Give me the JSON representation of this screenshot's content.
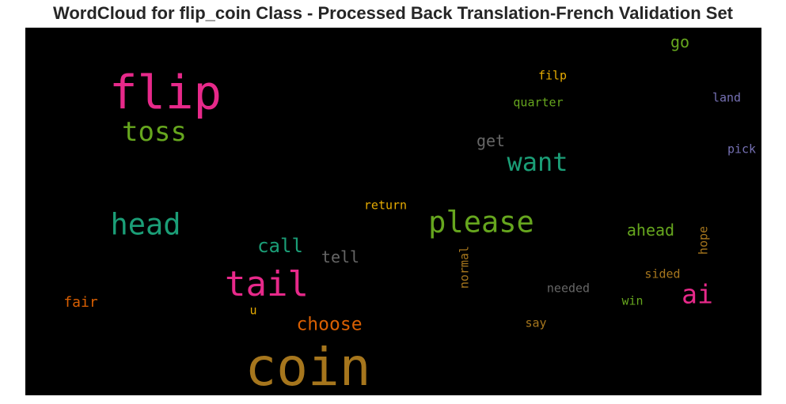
{
  "chart_data": {
    "type": "wordcloud",
    "title": "WordCloud for flip_coin Class - Processed Back Translation-French Validation Set",
    "background": "#000000",
    "words": [
      {
        "text": "coin",
        "weight": 1.0,
        "color": "#a6761d",
        "orientation": "horizontal"
      },
      {
        "text": "flip",
        "weight": 0.9,
        "color": "#e7298a",
        "orientation": "horizontal"
      },
      {
        "text": "tail",
        "weight": 0.66,
        "color": "#e7298a",
        "orientation": "horizontal"
      },
      {
        "text": "head",
        "weight": 0.56,
        "color": "#1b9e77",
        "orientation": "horizontal"
      },
      {
        "text": "please",
        "weight": 0.56,
        "color": "#66a61e",
        "orientation": "horizontal"
      },
      {
        "text": "toss",
        "weight": 0.52,
        "color": "#66a61e",
        "orientation": "horizontal"
      },
      {
        "text": "ai",
        "weight": 0.5,
        "color": "#e7298a",
        "orientation": "horizontal"
      },
      {
        "text": "want",
        "weight": 0.48,
        "color": "#1b9e77",
        "orientation": "horizontal"
      },
      {
        "text": "call",
        "weight": 0.37,
        "color": "#1b9e77",
        "orientation": "horizontal"
      },
      {
        "text": "choose",
        "weight": 0.35,
        "color": "#d95f02",
        "orientation": "horizontal"
      },
      {
        "text": "tell",
        "weight": 0.3,
        "color": "#666666",
        "orientation": "horizontal"
      },
      {
        "text": "get",
        "weight": 0.3,
        "color": "#666666",
        "orientation": "horizontal"
      },
      {
        "text": "ahead",
        "weight": 0.3,
        "color": "#66a61e",
        "orientation": "horizontal"
      },
      {
        "text": "go",
        "weight": 0.3,
        "color": "#66a61e",
        "orientation": "horizontal"
      },
      {
        "text": "fair",
        "weight": 0.28,
        "color": "#d95f02",
        "orientation": "horizontal"
      },
      {
        "text": "return",
        "weight": 0.22,
        "color": "#e6ab02",
        "orientation": "horizontal"
      },
      {
        "text": "filp",
        "weight": 0.22,
        "color": "#e6ab02",
        "orientation": "horizontal"
      },
      {
        "text": "quarter",
        "weight": 0.22,
        "color": "#66a61e",
        "orientation": "horizontal"
      },
      {
        "text": "land",
        "weight": 0.22,
        "color": "#7570b3",
        "orientation": "horizontal"
      },
      {
        "text": "pick",
        "weight": 0.22,
        "color": "#7570b3",
        "orientation": "horizontal"
      },
      {
        "text": "sided",
        "weight": 0.22,
        "color": "#a6761d",
        "orientation": "horizontal"
      },
      {
        "text": "needed",
        "weight": 0.22,
        "color": "#666666",
        "orientation": "horizontal"
      },
      {
        "text": "win",
        "weight": 0.22,
        "color": "#66a61e",
        "orientation": "horizontal"
      },
      {
        "text": "say",
        "weight": 0.22,
        "color": "#a6761d",
        "orientation": "horizontal"
      },
      {
        "text": "u",
        "weight": 0.22,
        "color": "#e6ab02",
        "orientation": "horizontal"
      },
      {
        "text": "normal",
        "weight": 0.22,
        "color": "#a6761d",
        "orientation": "vertical"
      },
      {
        "text": "hope",
        "weight": 0.22,
        "color": "#a6761d",
        "orientation": "vertical"
      }
    ]
  }
}
